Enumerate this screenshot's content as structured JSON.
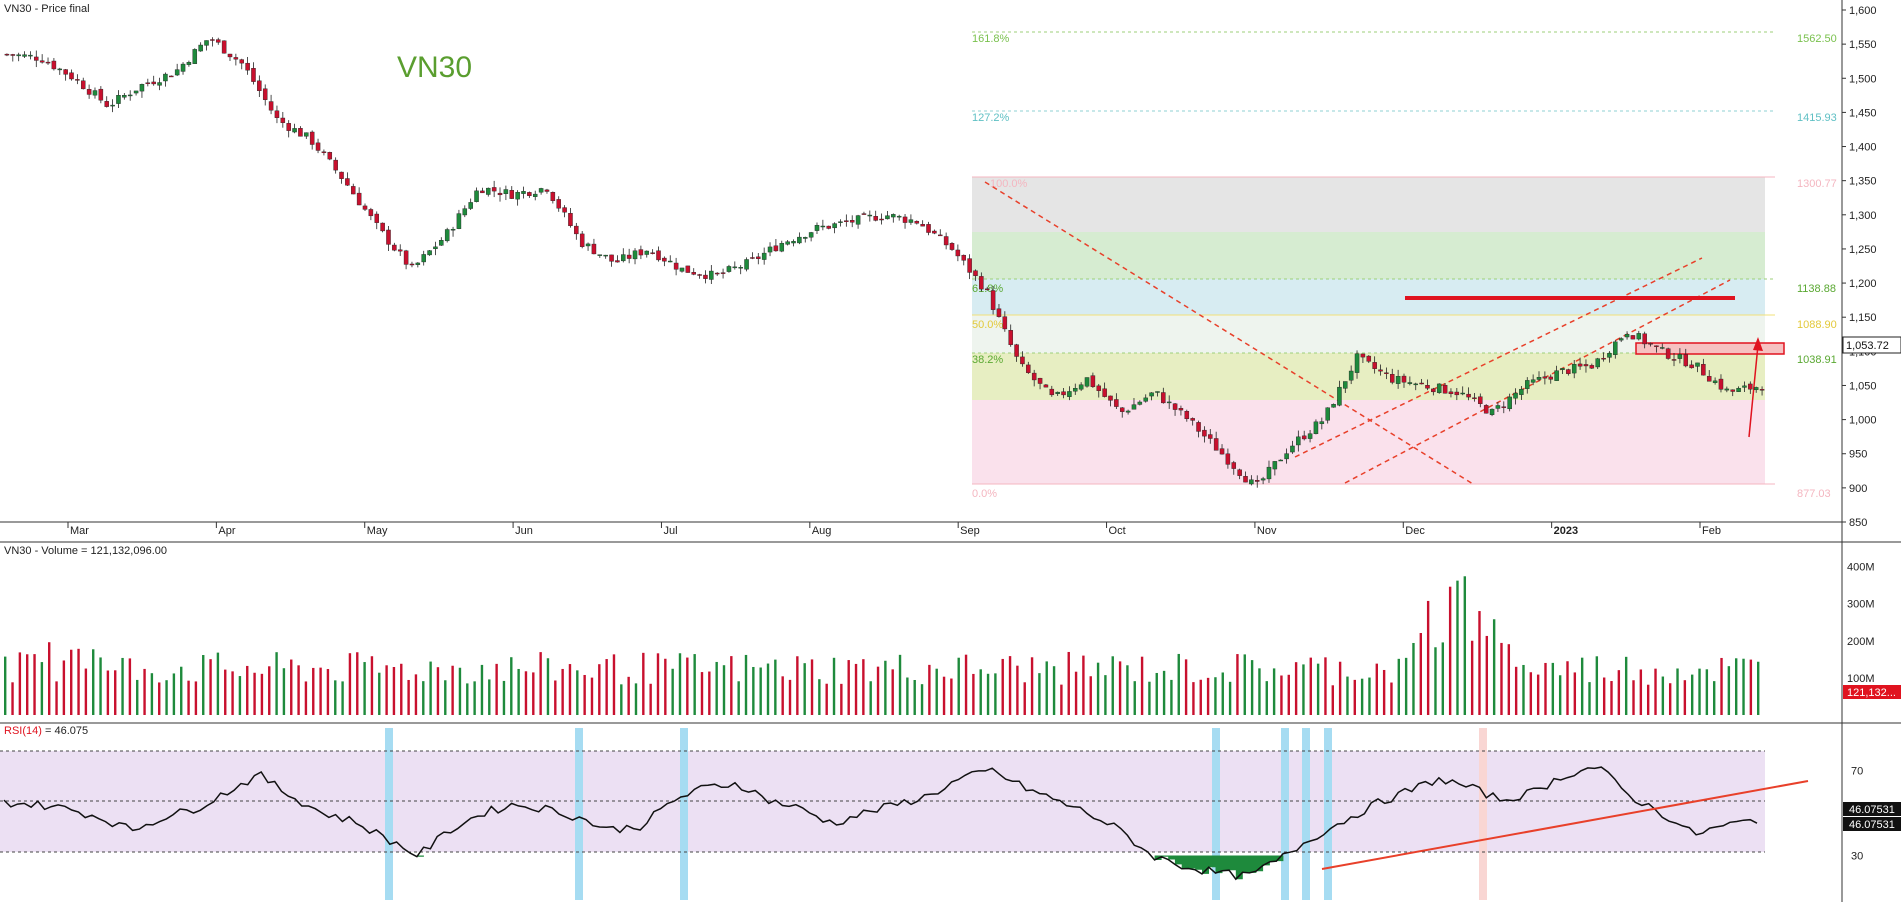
{
  "window": {
    "title": "VN30 - Price final"
  },
  "colors": {
    "up": "#1e8a3c",
    "down": "#c8102e",
    "fib_green": "#6cbf3a",
    "rsi_band": "#ece0f3",
    "marker_blue": "#a6dcf2",
    "marker_pink": "#f9d6d3",
    "trend": "#e8402a"
  },
  "chart_data": [
    {
      "type": "candlestick",
      "title": "VN30",
      "xlabel": "",
      "ylabel": "",
      "x_ticks": [
        "Mar",
        "Apr",
        "May",
        "Jun",
        "Jul",
        "Aug",
        "Sep",
        "Oct",
        "Nov",
        "Dec",
        "2023",
        "Feb"
      ],
      "y_ticks": [
        "1,600",
        "1,550",
        "1,500",
        "1,450",
        "1,400",
        "1,350",
        "1,300",
        "1,250",
        "1,200",
        "1,150",
        "1,100",
        "1,050",
        "1,000",
        "950",
        "900",
        "850"
      ],
      "ylim": [
        850,
        1600
      ],
      "last_price_label": "1,053.72",
      "approx_closes": [
        1535,
        1530,
        1500,
        1460,
        1490,
        1510,
        1560,
        1520,
        1440,
        1410,
        1350,
        1280,
        1220,
        1270,
        1340,
        1330,
        1340,
        1260,
        1230,
        1250,
        1220,
        1210,
        1230,
        1260,
        1280,
        1290,
        1300,
        1290,
        1250,
        1190,
        1080,
        1030,
        1060,
        1010,
        1040,
        1000,
        950,
        900,
        960,
        1000,
        1090,
        1060,
        1050,
        1040,
        1010,
        1050,
        1070,
        1080,
        1130,
        1100,
        1080,
        1040,
        1050
      ],
      "fibonacci": [
        {
          "ratio": "161.8%",
          "value": "1562.50"
        },
        {
          "ratio": "127.2%",
          "value": "1415.93"
        },
        {
          "ratio": "100.0%",
          "value": "1300.77"
        },
        {
          "ratio": "61.8%",
          "value": "1138.88"
        },
        {
          "ratio": "50.0%",
          "value": "1088.90"
        },
        {
          "ratio": "38.2%",
          "value": "1038.91"
        },
        {
          "ratio": "0.0%",
          "value": "877.03"
        }
      ]
    },
    {
      "type": "bar",
      "title": "VN30 - Volume",
      "header_value": "121,132,096.00",
      "y_ticks": [
        "400M",
        "300M",
        "200M",
        "100M"
      ],
      "ylim": [
        0,
        450000000
      ],
      "last_value_label": "121,132..."
    },
    {
      "type": "line",
      "title": "RSI(14)",
      "header_value": "46.075",
      "y_ticks": [
        "70",
        "30"
      ],
      "ylim": [
        10,
        90
      ],
      "last_value_labels": [
        "46.07531",
        "46.07531"
      ],
      "approx_values": [
        55,
        54,
        52,
        48,
        42,
        48,
        52,
        60,
        68,
        58,
        50,
        46,
        38,
        30,
        42,
        50,
        54,
        52,
        48,
        42,
        44,
        56,
        62,
        64,
        56,
        52,
        45,
        50,
        54,
        58,
        66,
        70,
        62,
        56,
        50,
        42,
        30,
        25,
        22,
        20,
        28,
        38,
        46,
        54,
        60,
        66,
        62,
        56,
        60,
        68,
        72,
        58,
        50,
        40,
        44,
        47
      ]
    }
  ]
}
